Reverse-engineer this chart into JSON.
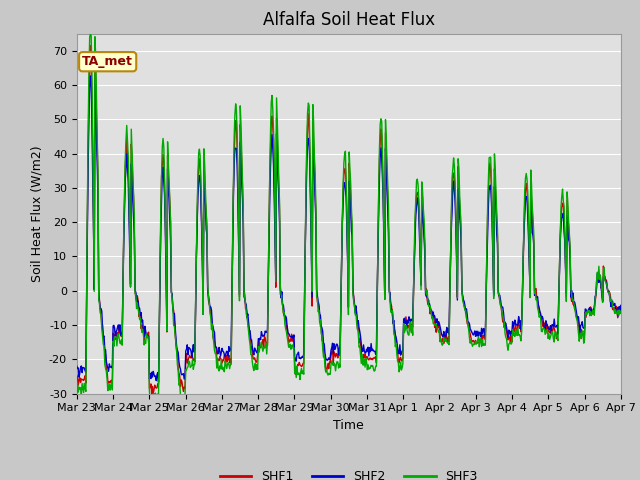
{
  "title": "Alfalfa Soil Heat Flux",
  "ylabel": "Soil Heat Flux (W/m2)",
  "xlabel": "Time",
  "ylim": [
    -30,
    75
  ],
  "annotation_text": "TA_met",
  "annotation_box_color": "#FFFFCC",
  "annotation_text_color": "#8B0000",
  "annotation_border_color": "#B8860B",
  "figure_facecolor": "#C8C8C8",
  "axes_facecolor": "#E0E0E0",
  "grid_color": "#FFFFFF",
  "shf1_color": "#CC0000",
  "shf2_color": "#0000CC",
  "shf3_color": "#00AA00",
  "tick_labels": [
    "Mar 23",
    "Mar 24",
    "Mar 25",
    "Mar 26",
    "Mar 27",
    "Mar 28",
    "Mar 29",
    "Mar 30",
    "Mar 31",
    "Apr 1",
    "Apr 2",
    "Apr 3",
    "Apr 4",
    "Apr 5",
    "Apr 6",
    "Apr 7"
  ],
  "n_days": 15,
  "pts_per_day": 48,
  "title_fontsize": 12,
  "axis_label_fontsize": 9,
  "tick_fontsize": 8,
  "legend_fontsize": 9,
  "annotation_fontsize": 9,
  "line_width": 1.0,
  "peaks_data": [
    [
      70,
      -26
    ],
    [
      43,
      -13
    ],
    [
      40,
      -28
    ],
    [
      38,
      -20
    ],
    [
      50,
      -20
    ],
    [
      51,
      -15
    ],
    [
      50,
      -22
    ],
    [
      37,
      -19
    ],
    [
      47,
      -20
    ],
    [
      30,
      -10
    ],
    [
      35,
      -14
    ],
    [
      36,
      -14
    ],
    [
      31,
      -11
    ],
    [
      26,
      -12
    ],
    [
      5,
      -6
    ]
  ],
  "shf1_scale": 1.0,
  "shf2_scale": 0.88,
  "shf3_scale": 1.1,
  "shf1_seed": 10,
  "shf2_seed": 20,
  "shf3_seed": 30,
  "yticks": [
    -30,
    -20,
    -10,
    0,
    10,
    20,
    30,
    40,
    50,
    60,
    70
  ]
}
